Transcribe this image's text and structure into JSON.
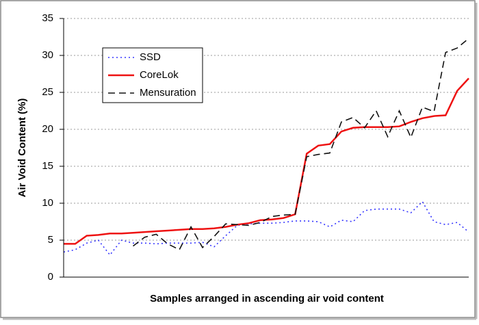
{
  "chart_data": {
    "type": "line",
    "xlabel": "Samples arranged in ascending air void content",
    "ylabel": "Air Void Content (%)",
    "categories": [
      null,
      null,
      null,
      null,
      null,
      null,
      null,
      null,
      null,
      null,
      null,
      null,
      null,
      null,
      null,
      null,
      null,
      null,
      null,
      null,
      null,
      null,
      null,
      null,
      null,
      null,
      null,
      null,
      null,
      null,
      null,
      null,
      null,
      null,
      null,
      null
    ],
    "series": [
      {
        "name": "SSD",
        "color": "#3333ff",
        "dash": "2,4",
        "values": [
          3.4,
          3.7,
          4.6,
          5.0,
          3.0,
          5.0,
          4.6,
          4.6,
          4.5,
          4.6,
          4.6,
          4.6,
          4.7,
          4.1,
          5.6,
          7.0,
          7.2,
          7.3,
          7.3,
          7.4,
          7.6,
          7.6,
          7.5,
          6.8,
          7.7,
          7.5,
          9.0,
          9.2,
          9.2,
          9.2,
          8.7,
          10.2,
          7.5,
          7.1,
          7.4,
          6.1
        ]
      },
      {
        "name": "CoreLok",
        "color": "#ee1111",
        "dash": "none",
        "values": [
          4.5,
          4.5,
          5.6,
          5.7,
          5.9,
          5.9,
          6.0,
          6.1,
          6.2,
          6.3,
          6.4,
          6.5,
          6.5,
          6.6,
          6.8,
          7.1,
          7.3,
          7.7,
          7.8,
          8.0,
          8.5,
          16.7,
          17.8,
          18.0,
          19.7,
          20.2,
          20.3,
          20.3,
          20.3,
          20.4,
          21.0,
          21.5,
          21.8,
          21.9,
          25.2,
          26.9
        ]
      },
      {
        "name": "Mensuration",
        "color": "#111111",
        "dash": "10,6",
        "values": [
          null,
          null,
          null,
          null,
          null,
          null,
          4.2,
          5.4,
          5.8,
          4.5,
          3.7,
          6.8,
          4.0,
          5.5,
          7.2,
          7.1,
          7.0,
          7.4,
          8.2,
          8.4,
          8.5,
          16.3,
          16.6,
          16.8,
          21.0,
          21.6,
          20.2,
          22.5,
          19.0,
          22.5,
          18.9,
          23.0,
          22.4,
          30.4,
          31.0,
          32.3
        ]
      }
    ],
    "ylim": [
      0,
      35
    ],
    "yticks": [
      0,
      5,
      10,
      15,
      20,
      25,
      30,
      35
    ],
    "grid": true
  }
}
